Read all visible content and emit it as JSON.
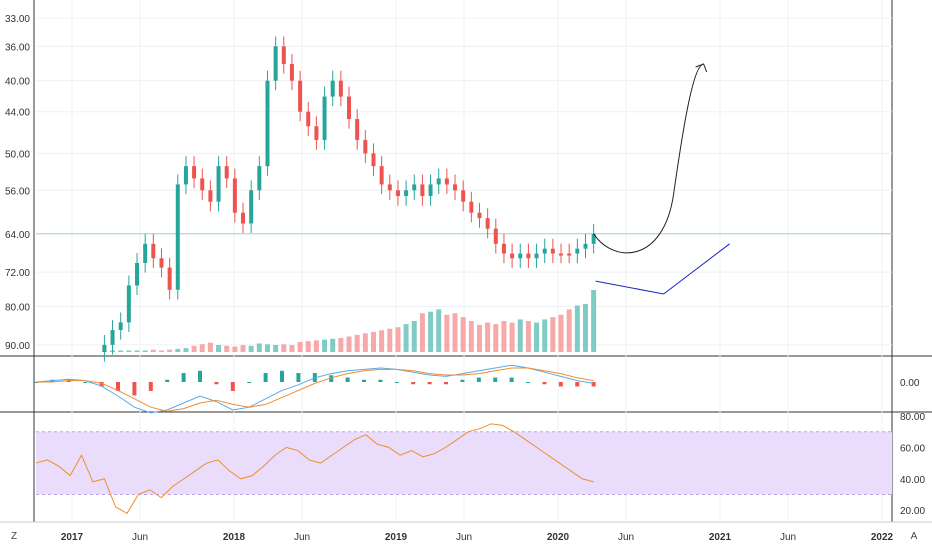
{
  "colors": {
    "up": "#26a69a",
    "down": "#ef5350",
    "volume_up": "#80cbc4",
    "volume_down": "#f7a8a8",
    "grid": "#eef0f3",
    "panel_border": "#333333",
    "hline": "#9fd3de",
    "macd_line": "#5aa9e6",
    "signal_line": "#f08c30",
    "rsi_line": "#f08c30",
    "rsi_band": "#e9ddfb",
    "drawing_black": "#222222",
    "drawing_blue": "#1a23c4"
  },
  "chart_data": [
    {
      "type": "candlestick",
      "panel": "price",
      "y_axis": "inverted",
      "ylim": [
        92,
        32
      ],
      "y_ticks": [
        "33.00",
        "36.00",
        "40.00",
        "44.00",
        "50.00",
        "56.00",
        "64.00",
        "72.00",
        "80.00",
        "90.00"
      ],
      "x_ticks": [
        "2017",
        "Jun",
        "2018",
        "Jun",
        "2019",
        "Jun",
        "2020",
        "Jun",
        "2021",
        "Jun",
        "2022"
      ],
      "horizontal_line": 64.0,
      "series": [
        {
          "name": "",
          "close": [
            90,
            86,
            84,
            75,
            70,
            66,
            69,
            71,
            76,
            55,
            52,
            54,
            56,
            58,
            52,
            54,
            60,
            62,
            56,
            52,
            40,
            36,
            38,
            40,
            44,
            46,
            48,
            42,
            40,
            42,
            45,
            48,
            50,
            52,
            55,
            56,
            57,
            56,
            55,
            57,
            55,
            54,
            55,
            56,
            58,
            60,
            61,
            63,
            66,
            68,
            69,
            68,
            69,
            68,
            67,
            68,
            68,
            68,
            67,
            66,
            64
          ]
        }
      ],
      "volume": {
        "values": [
          2,
          2,
          2,
          2,
          2,
          2,
          3,
          2,
          3,
          4,
          5,
          8,
          10,
          12,
          9,
          8,
          7,
          9,
          8,
          11,
          10,
          9,
          10,
          9,
          13,
          14,
          15,
          16,
          17,
          18,
          20,
          22,
          24,
          26,
          28,
          30,
          32,
          36,
          40,
          50,
          52,
          55,
          48,
          50,
          45,
          40,
          35,
          38,
          36,
          40,
          38,
          42,
          40,
          38,
          42,
          45,
          48,
          55,
          60,
          62,
          80
        ]
      }
    },
    {
      "type": "line",
      "panel": "macd",
      "y_ticks": [
        "0.00"
      ],
      "series": [
        {
          "name": "",
          "values": [
            0,
            0.1,
            0.2,
            0.1,
            -0.3,
            -1.0,
            -1.8,
            -2.2,
            -2.0,
            -1.5,
            -1.0,
            -1.4,
            -2.0,
            -1.8,
            -1.2,
            -0.6,
            -0.2,
            0.3,
            0.6,
            0.8,
            0.9,
            1.0,
            0.9,
            0.7,
            0.5,
            0.4,
            0.6,
            0.8,
            1.0,
            1.2,
            1.0,
            0.7,
            0.4,
            0.1,
            -0.1
          ]
        },
        {
          "name": "",
          "values": [
            0,
            0,
            0.1,
            0.1,
            -0.1,
            -0.6,
            -1.2,
            -1.8,
            -2.1,
            -1.9,
            -1.5,
            -1.3,
            -1.6,
            -1.8,
            -1.6,
            -1.1,
            -0.6,
            -0.1,
            0.3,
            0.6,
            0.8,
            0.9,
            0.9,
            0.8,
            0.6,
            0.5,
            0.5,
            0.6,
            0.8,
            1.0,
            1.0,
            0.8,
            0.6,
            0.3,
            0.1
          ]
        }
      ]
    },
    {
      "type": "line",
      "panel": "rsi",
      "ylim": [
        15,
        80
      ],
      "band": [
        30,
        70
      ],
      "y_ticks": [
        "80.00",
        "60.00",
        "40.00",
        "20.00"
      ],
      "series": [
        {
          "name": "",
          "values": [
            50,
            52,
            48,
            42,
            55,
            38,
            40,
            22,
            18,
            30,
            33,
            28,
            35,
            40,
            45,
            50,
            52,
            45,
            40,
            42,
            48,
            55,
            60,
            58,
            52,
            50,
            55,
            60,
            65,
            68,
            62,
            60,
            55,
            58,
            54,
            56,
            60,
            65,
            70,
            72,
            75,
            74,
            70,
            65,
            60,
            55,
            50,
            45,
            40,
            38
          ]
        }
      ]
    }
  ],
  "footer": {
    "left_label": "Z",
    "right_label": "A"
  }
}
